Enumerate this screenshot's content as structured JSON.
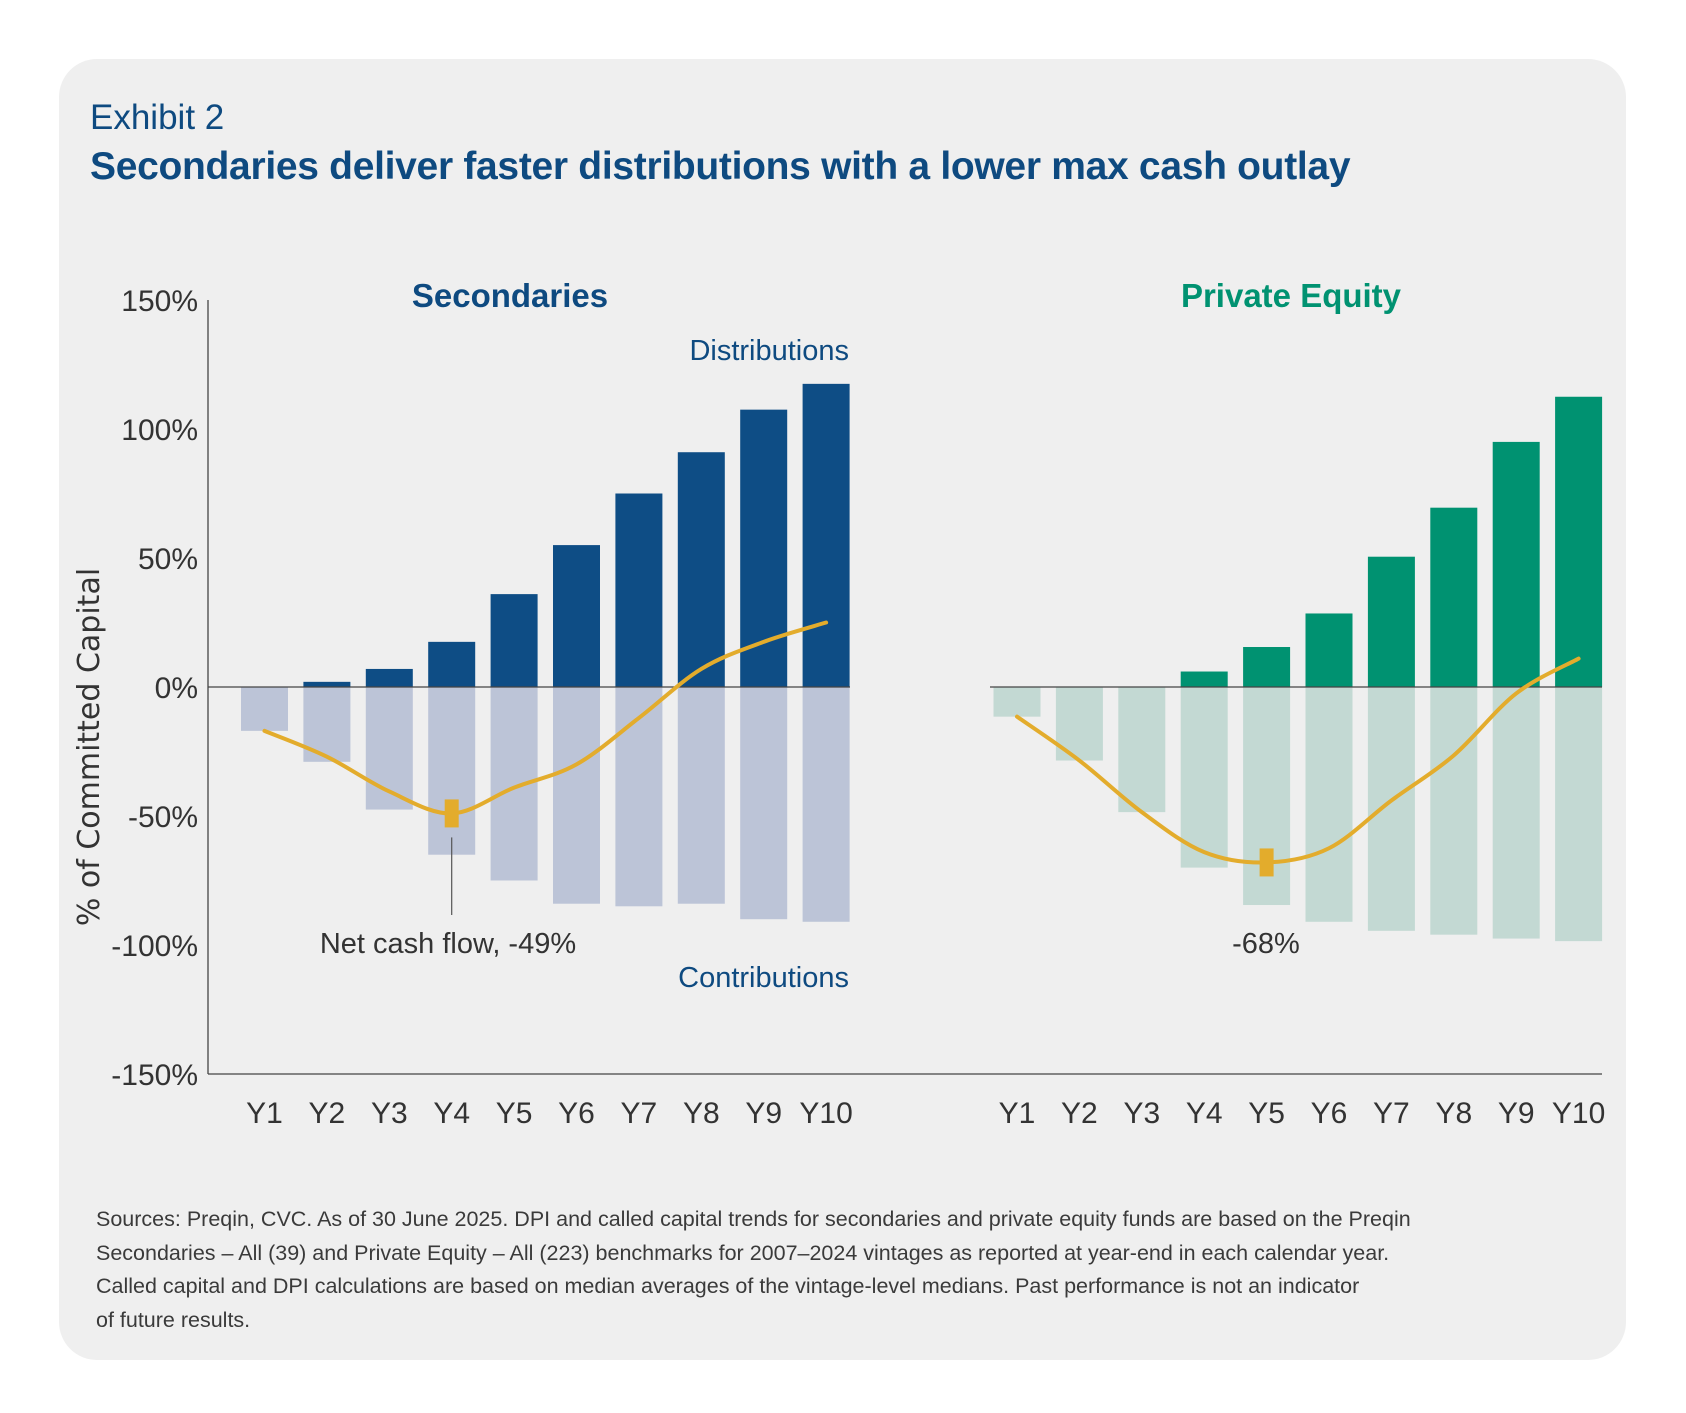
{
  "header": {
    "exhibit_label": "Exhibit 2",
    "title": "Secondaries deliver faster distributions with a lower max cash outlay"
  },
  "colors": {
    "secondaries_distributions": "#0e4d85",
    "secondaries_contributions": "#bcc4d7",
    "pe_distributions": "#009271",
    "pe_contributions": "#c3d9d3",
    "net_cash_flow_line": "#e3ac2c",
    "secondaries_title": "#0e4a80",
    "pe_title": "#009271",
    "axis": "#444444",
    "card_background": "#efefef"
  },
  "footnote": {
    "lines": [
      "Sources: Preqin, CVC. As of 30 June 2025. DPI and called capital trends for secondaries and private equity funds are based on the Preqin",
      "Secondaries – All (39) and Private Equity – All (223) benchmarks for 2007–2024 vintages as reported at year-end in each calendar year.",
      "Called capital and DPI calculations are based on median averages of the vintage-level medians.  Past performance is not an indicator",
      "of future results."
    ]
  },
  "chart_data": {
    "type": "bar",
    "ylabel": "% of Committed Capital",
    "ylim": [
      -150,
      150
    ],
    "yticks": [
      150,
      100,
      50,
      0,
      -50,
      -100,
      -150
    ],
    "ytick_labels": [
      "150%",
      "100%",
      "50%",
      "0%",
      "-50%",
      "-100%",
      "-150%"
    ],
    "grid": false,
    "panels": [
      {
        "title": "Secondaries",
        "categories": [
          "Y1",
          "Y2",
          "Y3",
          "Y4",
          "Y5",
          "Y6",
          "Y7",
          "Y8",
          "Y9",
          "Y10"
        ],
        "series": [
          {
            "name": "Distributions",
            "type": "bar",
            "values": [
              0,
              2,
              7,
              17.5,
              36,
              55,
              75,
              91,
              107.5,
              117.5
            ]
          },
          {
            "name": "Contributions",
            "type": "bar",
            "values": [
              -17,
              -29,
              -47.5,
              -65,
              -75,
              -84,
              -85,
              -84,
              -90,
              -91
            ]
          },
          {
            "name": "Net cash flow",
            "type": "line",
            "values": [
              -17,
              -27,
              -40.5,
              -49,
              -39,
              -30,
              -12,
              7,
              17.5,
              25
            ]
          }
        ],
        "annotations": [
          {
            "text": "Distributions",
            "anchor": "top-right"
          },
          {
            "text": "Contributions",
            "anchor": "bottom-right"
          },
          {
            "text": "Net cash flow, -49%",
            "category": "Y4",
            "value": -49,
            "marker": true
          }
        ]
      },
      {
        "title": "Private Equity",
        "categories": [
          "Y1",
          "Y2",
          "Y3",
          "Y4",
          "Y5",
          "Y6",
          "Y7",
          "Y8",
          "Y9",
          "Y10"
        ],
        "series": [
          {
            "name": "Distributions",
            "type": "bar",
            "values": [
              0,
              0,
              0,
              6,
              15.5,
              28.5,
              50.5,
              69.5,
              95,
              112.5
            ]
          },
          {
            "name": "Contributions",
            "type": "bar",
            "values": [
              -11.5,
              -28.5,
              -48.5,
              -70,
              -84.5,
              -91,
              -94.5,
              -96,
              -97.5,
              -98.5
            ]
          },
          {
            "name": "Net cash flow",
            "type": "line",
            "values": [
              -11.5,
              -28.5,
              -48.5,
              -64,
              -68,
              -62.5,
              -44,
              -26.5,
              -2.5,
              11
            ]
          }
        ],
        "annotations": [
          {
            "text": "-68%",
            "category": "Y5",
            "value": -68,
            "marker": true
          }
        ]
      }
    ]
  }
}
